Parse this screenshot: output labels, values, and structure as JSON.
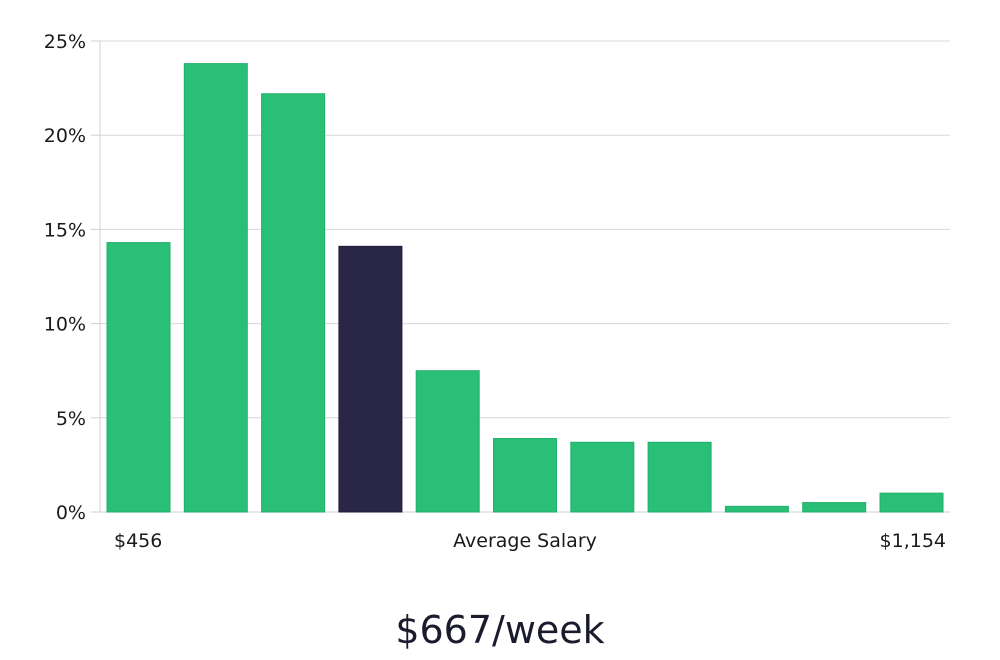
{
  "chart_data": {
    "type": "bar",
    "values": [
      14.3,
      23.8,
      22.2,
      14.1,
      7.5,
      3.9,
      3.7,
      3.7,
      0.3,
      0.5,
      1.0
    ],
    "highlight_index": 3,
    "ylim": [
      0,
      25
    ],
    "y_ticks": [
      0,
      5,
      10,
      15,
      20,
      25
    ],
    "y_tick_labels": [
      "0%",
      "5%",
      "10%",
      "15%",
      "20%",
      "25%"
    ],
    "x_min_label": "$456",
    "xlabel": "Average Salary",
    "x_max_label": "$1,154",
    "grid": true,
    "colors": {
      "bar": "#2abf76",
      "bar_highlight": "#2a2647",
      "grid": "#d9d9d9"
    }
  },
  "summary": {
    "salary": "$667/week"
  }
}
